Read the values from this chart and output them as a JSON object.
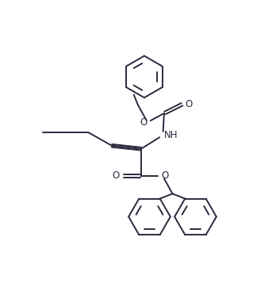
{
  "bg_color": "#ffffff",
  "line_color": "#2a2a3e",
  "bond_lw": 1.4,
  "label_fontsize": 8.5,
  "figure_size": [
    3.19,
    3.86
  ],
  "dpi": 100,
  "xlim": [
    -1,
    11
  ],
  "ylim": [
    -1,
    13
  ]
}
